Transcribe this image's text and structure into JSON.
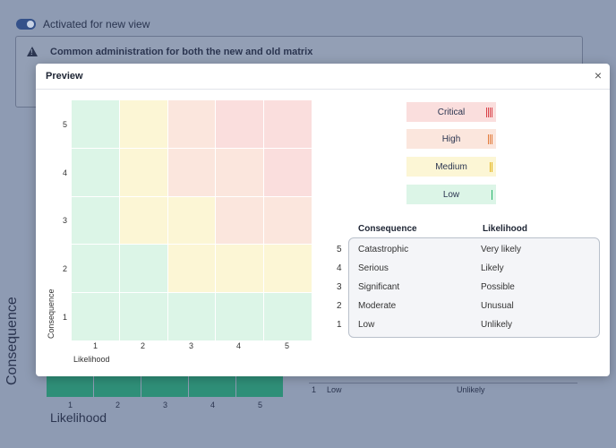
{
  "background": {
    "toggle_label": "Activated for new view",
    "notice": "Common administration for both the new and old matrix",
    "y_axis_title": "Consequence",
    "x_axis_title": "Likelihood",
    "x_ticks": [
      "1",
      "2",
      "3",
      "4",
      "5"
    ],
    "row_num": "1",
    "row_consequence": "Low",
    "row_likelihood": "Unlikely"
  },
  "modal": {
    "title": "Preview",
    "close": "×"
  },
  "matrix": {
    "y_title": "Consequence",
    "x_title": "Likelihood",
    "y_ticks": [
      "5",
      "4",
      "3",
      "2",
      "1"
    ],
    "x_ticks": [
      "1",
      "2",
      "3",
      "4",
      "5"
    ],
    "levels_top_to_bottom": [
      [
        "low",
        "med",
        "high",
        "crit",
        "crit"
      ],
      [
        "low",
        "med",
        "high",
        "high",
        "crit"
      ],
      [
        "low",
        "med",
        "med",
        "high",
        "high"
      ],
      [
        "low",
        "low",
        "med",
        "med",
        "med"
      ],
      [
        "low",
        "low",
        "low",
        "low",
        "low"
      ]
    ]
  },
  "legend": [
    {
      "label": "Critical",
      "bars": 4,
      "fill": "#fadedd",
      "bar_color": "#d9434a"
    },
    {
      "label": "High",
      "bars": 3,
      "fill": "#fbe6dd",
      "bar_color": "#e27b3b"
    },
    {
      "label": "Medium",
      "bars": 2,
      "fill": "#fcf6d5",
      "bar_color": "#e4b418"
    },
    {
      "label": "Low",
      "bars": 1,
      "fill": "#dcf5e7",
      "bar_color": "#27b46a"
    }
  ],
  "table": {
    "head_consequence": "Consequence",
    "head_likelihood": "Likelihood",
    "rows": [
      {
        "num": "5",
        "consequence": "Catastrophic",
        "likelihood": "Very likely"
      },
      {
        "num": "4",
        "consequence": "Serious",
        "likelihood": "Likely"
      },
      {
        "num": "3",
        "consequence": "Significant",
        "likelihood": "Possible"
      },
      {
        "num": "2",
        "consequence": "Moderate",
        "likelihood": "Unusual"
      },
      {
        "num": "1",
        "consequence": "Low",
        "likelihood": "Unlikely"
      }
    ]
  }
}
